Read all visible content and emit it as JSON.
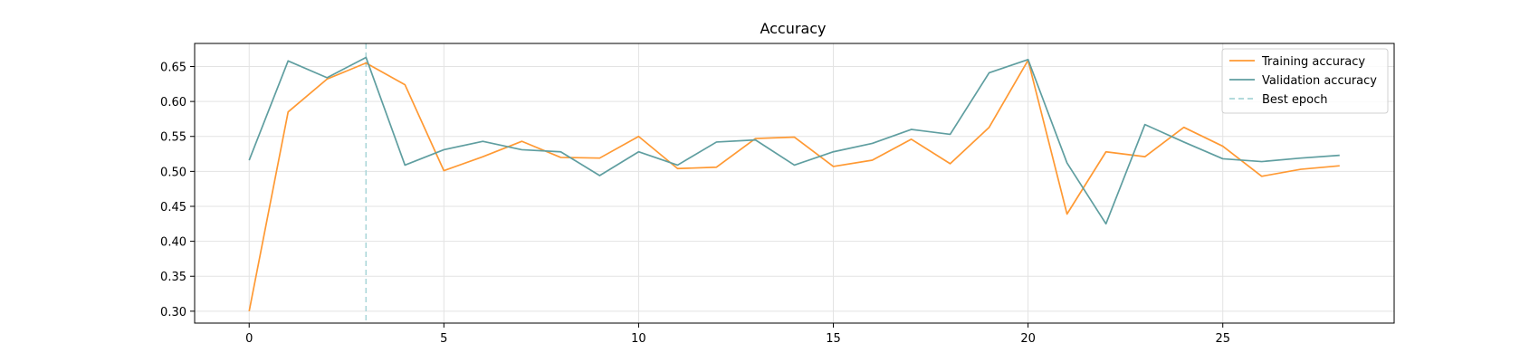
{
  "chart_data": {
    "type": "line",
    "title": "Accuracy",
    "xlabel": "",
    "ylabel": "",
    "xlim": [
      -1.4,
      29.4
    ],
    "ylim": [
      0.283,
      0.683
    ],
    "x_ticks": [
      0,
      5,
      10,
      15,
      20,
      25
    ],
    "y_ticks": [
      0.3,
      0.35,
      0.4,
      0.45,
      0.5,
      0.55,
      0.6,
      0.65
    ],
    "grid": true,
    "legend_position": "top-right",
    "x": [
      0,
      1,
      2,
      3,
      4,
      5,
      6,
      7,
      8,
      9,
      10,
      11,
      12,
      13,
      14,
      15,
      16,
      17,
      18,
      19,
      20,
      21,
      22,
      23,
      24,
      25,
      26,
      27,
      28
    ],
    "series": [
      {
        "name": "Training accuracy",
        "color": "#ff9933",
        "style": "solid",
        "values": [
          0.3,
          0.585,
          0.632,
          0.655,
          0.624,
          0.501,
          0.521,
          0.543,
          0.52,
          0.519,
          0.55,
          0.504,
          0.506,
          0.547,
          0.549,
          0.507,
          0.516,
          0.546,
          0.511,
          0.563,
          0.659,
          0.439,
          0.528,
          0.521,
          0.563,
          0.536,
          0.493,
          0.503,
          0.508
        ]
      },
      {
        "name": "Validation accuracy",
        "color": "#5f9ea0",
        "style": "solid",
        "values": [
          0.516,
          0.658,
          0.634,
          0.663,
          0.509,
          0.531,
          0.543,
          0.531,
          0.528,
          0.494,
          0.528,
          0.509,
          0.542,
          0.545,
          0.509,
          0.528,
          0.54,
          0.56,
          0.553,
          0.641,
          0.66,
          0.512,
          0.425,
          0.567,
          0.542,
          0.518,
          0.514,
          0.519,
          0.523
        ]
      }
    ],
    "vlines": [
      {
        "name": "Best epoch",
        "x": 3,
        "color": "#a8d5d8",
        "style": "dashed"
      }
    ]
  }
}
